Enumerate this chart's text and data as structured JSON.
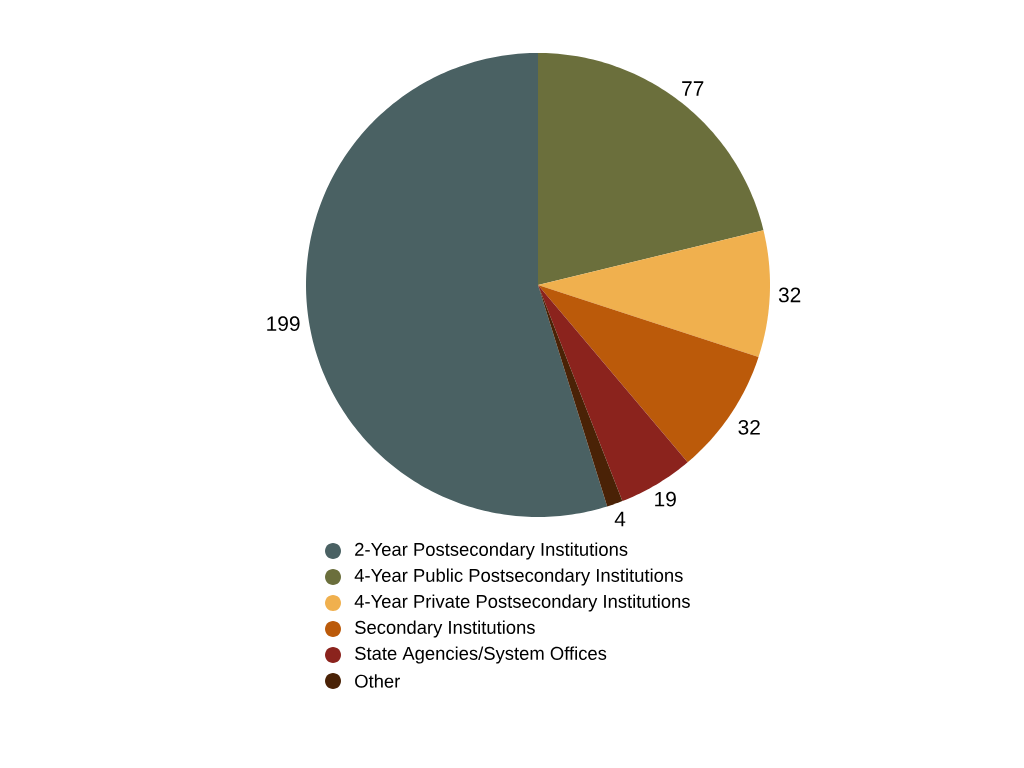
{
  "chart_data": {
    "type": "pie",
    "categories": [
      "2-Year Postsecondary Institutions",
      "4-Year Public Postsecondary Institutions",
      "4-Year Private Postsecondary Institutions",
      "Secondary Institutions",
      "State Agencies/System Offices",
      "Other"
    ],
    "values": [
      199,
      77,
      32,
      32,
      19,
      4
    ],
    "colors": [
      "#4a6163",
      "#6b6f3c",
      "#f0b04e",
      "#bb5a0a",
      "#8b231d",
      "#4a2206"
    ],
    "data_labels": true,
    "legend": "bottom"
  }
}
